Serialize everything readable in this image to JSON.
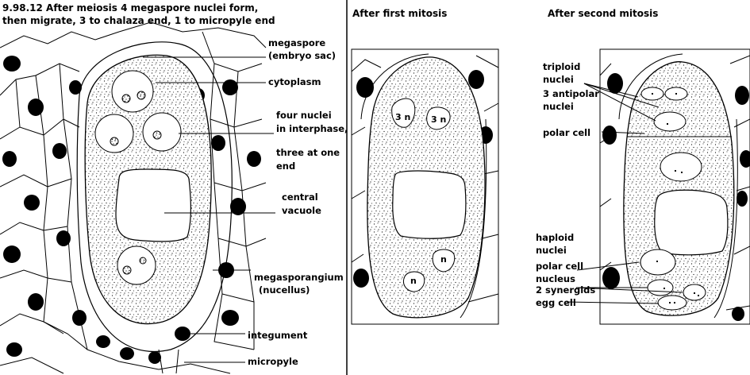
{
  "panels": {
    "first": {
      "caption_line1": "9.98.12 After meiosis 4 megaspore nuclei form,",
      "caption_line2": "then migrate, 3 to chalaza end, 1 to micropyle end",
      "labels": {
        "megaspore_1": "megaspore",
        "megaspore_2": "(embryo sac)",
        "cytoplasm": "cytoplasm",
        "four_nuclei_1": "four nuclei",
        "four_nuclei_2": "in interphase,",
        "three_end_1": "three at one",
        "three_end_2": "end",
        "central_1": "central",
        "central_2": "vacuole",
        "megasporangium_1": "megasporangium",
        "megasporangium_2": "(nucellus)",
        "integument": "integument",
        "micropyle": "micropyle"
      }
    },
    "second": {
      "title": "After first mitosis",
      "nucleus_3n_a": "3 n",
      "nucleus_3n_b": "3 n",
      "nucleus_n_a": "n",
      "nucleus_n_b": "n"
    },
    "third": {
      "title": "After second mitosis",
      "labels": {
        "triploid_1": "triploid",
        "triploid_2": "nuclei",
        "antipolar_1": "3 antipolar",
        "antipolar_2": "nuclei",
        "polar_cell": "polar cell",
        "haploid_1": "haploid",
        "haploid_2": "nuclei",
        "polar_nucleus_1": "polar cell",
        "polar_nucleus_2": "nucleus",
        "synergids": "2 synergids",
        "egg_cell": "egg cell"
      }
    }
  }
}
